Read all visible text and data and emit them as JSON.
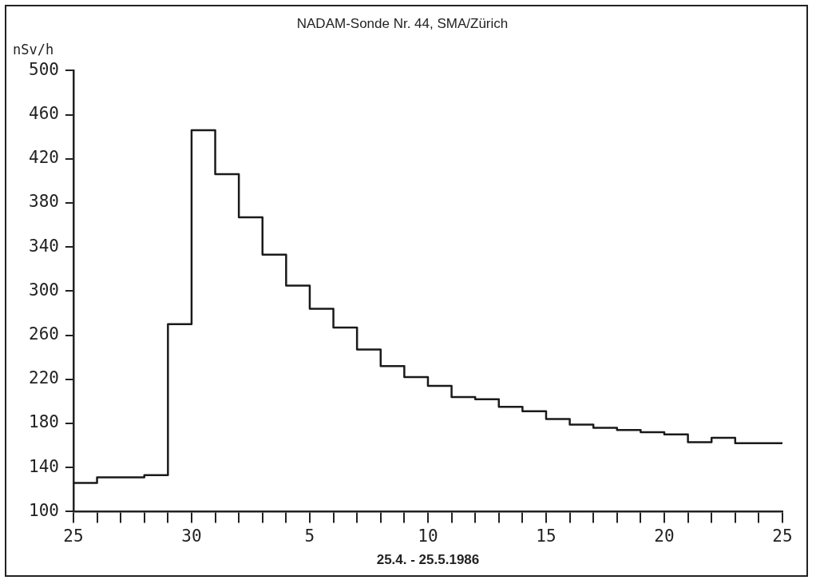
{
  "chart_data": {
    "type": "step",
    "title": "NADAM-Sonde Nr. 44, SMA/Zürich",
    "xlabel": "25.4. - 25.5.1986",
    "ylabel": "nSv/h",
    "x": [
      "--04-25",
      "--04-26",
      "--04-27",
      "--04-28",
      "--04-29",
      "--04-30",
      "--05-01",
      "--05-02",
      "--05-03",
      "--05-04",
      "--05-05",
      "--05-06",
      "--05-07",
      "--05-08",
      "--05-09",
      "--05-10",
      "--05-11",
      "--05-12",
      "--05-13",
      "--05-14",
      "--05-15",
      "--05-16",
      "--05-17",
      "--05-18",
      "--05-19",
      "--05-20",
      "--05-21",
      "--05-22",
      "--05-23",
      "--05-24",
      "--05-25"
    ],
    "series": [
      {
        "color": "#1a1a1a",
        "values": [
          125,
          126,
          131,
          131,
          133,
          270,
          446,
          406,
          367,
          333,
          305,
          284,
          267,
          247,
          232,
          222,
          214,
          204,
          202,
          195,
          191,
          184,
          179,
          176,
          174,
          172,
          170,
          163,
          167,
          162,
          162
        ]
      }
    ],
    "xlim": [
      "--04-25",
      "--05-25"
    ],
    "xticks": [
      {
        "value": "--04-25",
        "label": "25"
      },
      {
        "value": "--04-26",
        "label": null
      },
      {
        "value": "--04-27",
        "label": null
      },
      {
        "value": "--04-28",
        "label": null
      },
      {
        "value": "--04-29",
        "label": null
      },
      {
        "value": "--04-30",
        "label": "30"
      },
      {
        "value": "--05-01",
        "label": null
      },
      {
        "value": "--05-02",
        "label": null
      },
      {
        "value": "--05-03",
        "label": null
      },
      {
        "value": "--05-04",
        "label": null
      },
      {
        "value": "--05-05",
        "label": "5"
      },
      {
        "value": "--05-06",
        "label": null
      },
      {
        "value": "--05-07",
        "label": null
      },
      {
        "value": "--05-08",
        "label": null
      },
      {
        "value": "--05-09",
        "label": null
      },
      {
        "value": "--05-10",
        "label": "10"
      },
      {
        "value": "--05-11",
        "label": null
      },
      {
        "value": "--05-12",
        "label": null
      },
      {
        "value": "--05-13",
        "label": null
      },
      {
        "value": "--05-14",
        "label": null
      },
      {
        "value": "--05-15",
        "label": "15"
      },
      {
        "value": "--05-16",
        "label": null
      },
      {
        "value": "--05-17",
        "label": null
      },
      {
        "value": "--05-18",
        "label": null
      },
      {
        "value": "--05-19",
        "label": null
      },
      {
        "value": "--05-20",
        "label": "20"
      },
      {
        "value": "--05-21",
        "label": null
      },
      {
        "value": "--05-22",
        "label": null
      },
      {
        "value": "--05-23",
        "label": null
      },
      {
        "value": "--05-24",
        "label": null
      },
      {
        "value": "--05-25",
        "label": "25"
      }
    ],
    "ylim": [
      100,
      500
    ],
    "yticks": [
      100,
      140,
      180,
      220,
      260,
      300,
      340,
      380,
      420,
      460,
      500
    ],
    "grid": false,
    "legend": false,
    "marker": "none",
    "line_style": "solid"
  }
}
